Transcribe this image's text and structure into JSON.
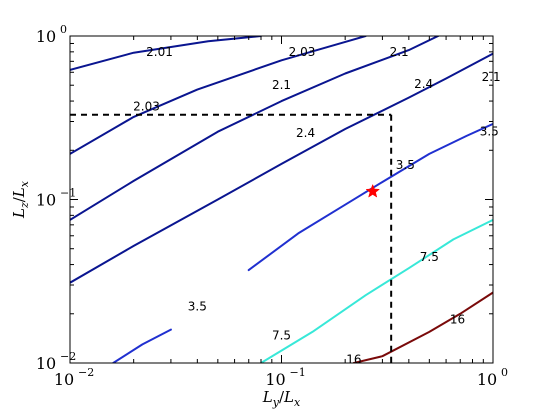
{
  "chart_data": {
    "type": "contour",
    "x_scale": "log",
    "y_scale": "log",
    "xlim": [
      0.01,
      1
    ],
    "ylim": [
      0.01,
      1
    ],
    "grid": false,
    "xlabel": {
      "base": "L",
      "sub": "y",
      "sep": "/",
      "base2": "L",
      "sub2": "x"
    },
    "ylabel": {
      "base": "L",
      "sub": "z",
      "sep": "/",
      "base2": "L",
      "sub2": "x"
    },
    "x_ticks": [
      {
        "value": 0.01,
        "base": "10",
        "exp": "−2"
      },
      {
        "value": 0.1,
        "base": "10",
        "exp": "−1"
      },
      {
        "value": 1,
        "base": "10",
        "exp": "0"
      }
    ],
    "y_ticks": [
      {
        "value": 0.01,
        "base": "10",
        "exp": "−2"
      },
      {
        "value": 0.1,
        "base": "10",
        "exp": "−1"
      },
      {
        "value": 1,
        "base": "10",
        "exp": "0"
      }
    ],
    "contours": [
      {
        "level": "2.01",
        "color": "#0a1590",
        "segments": [
          [
            [
              0.01,
              0.62
            ],
            [
              0.02,
              0.79
            ],
            [
              0.045,
              0.93
            ],
            [
              0.08,
              1.0
            ]
          ]
        ]
      },
      {
        "level": "2.03",
        "color": "#0a1590",
        "segments": [
          [
            [
              0.01,
              0.19
            ],
            [
              0.02,
              0.32
            ],
            [
              0.04,
              0.47
            ],
            [
              0.1,
              0.71
            ],
            [
              0.2,
              0.92
            ],
            [
              0.25,
              1.0
            ]
          ]
        ]
      },
      {
        "level": "2.1",
        "color": "#0a1590",
        "segments": [
          [
            [
              0.01,
              0.075
            ],
            [
              0.02,
              0.13
            ],
            [
              0.05,
              0.26
            ],
            [
              0.1,
              0.4
            ],
            [
              0.2,
              0.59
            ],
            [
              0.4,
              0.82
            ],
            [
              0.55,
              1.0
            ]
          ]
        ]
      },
      {
        "level": "2.4",
        "color": "#0a1590",
        "segments": [
          [
            [
              0.01,
              0.031
            ],
            [
              0.02,
              0.052
            ],
            [
              0.05,
              0.1
            ],
            [
              0.1,
              0.165
            ],
            [
              0.2,
              0.27
            ],
            [
              0.4,
              0.42
            ],
            [
              0.6,
              0.55
            ],
            [
              1.0,
              0.78
            ]
          ]
        ]
      },
      {
        "level": "3.5",
        "color": "#2030d0",
        "segments": [
          [
            [
              0.016,
              0.01
            ],
            [
              0.022,
              0.013
            ],
            [
              0.03,
              0.016
            ]
          ],
          [
            [
              0.07,
              0.037
            ],
            [
              0.12,
              0.062
            ],
            [
              0.2,
              0.093
            ],
            [
              0.3,
              0.128
            ],
            [
              0.5,
              0.19
            ],
            [
              0.75,
              0.245
            ],
            [
              1.0,
              0.29
            ]
          ]
        ]
      },
      {
        "level": "7.5",
        "color": "#38e8d8",
        "segments": [
          [
            [
              0.08,
              0.01
            ],
            [
              0.14,
              0.0155
            ],
            [
              0.25,
              0.026
            ],
            [
              0.4,
              0.038
            ],
            [
              0.65,
              0.057
            ],
            [
              1.0,
              0.075
            ]
          ]
        ]
      },
      {
        "level": "16",
        "color": "#7a0a0a",
        "segments": [
          [
            [
              0.22,
              0.01
            ],
            [
              0.3,
              0.011
            ],
            [
              0.5,
              0.0155
            ],
            [
              0.7,
              0.02
            ],
            [
              1.0,
              0.027
            ]
          ]
        ]
      }
    ],
    "contour_labels": [
      {
        "text": "2.01",
        "x": 0.0265,
        "y": 0.8
      },
      {
        "text": "2.03",
        "x": 0.125,
        "y": 0.8
      },
      {
        "text": "2.1",
        "x": 0.36,
        "y": 0.8
      },
      {
        "text": "2.1",
        "x": 0.98,
        "y": 0.56
      },
      {
        "text": "2.03",
        "x": 0.023,
        "y": 0.37
      },
      {
        "text": "2.1",
        "x": 0.1,
        "y": 0.5
      },
      {
        "text": "2.4",
        "x": 0.47,
        "y": 0.51
      },
      {
        "text": "2.4",
        "x": 0.13,
        "y": 0.255
      },
      {
        "text": "3.5",
        "x": 0.96,
        "y": 0.26
      },
      {
        "text": "3.5",
        "x": 0.385,
        "y": 0.163
      },
      {
        "text": "3.5",
        "x": 0.04,
        "y": 0.0221
      },
      {
        "text": "7.5",
        "x": 0.5,
        "y": 0.0445
      },
      {
        "text": "7.5",
        "x": 0.1,
        "y": 0.0147
      },
      {
        "text": "16",
        "x": 0.68,
        "y": 0.0184
      },
      {
        "text": "16",
        "x": 0.22,
        "y": 0.0105
      }
    ],
    "reference_lines": {
      "x": 0.33,
      "y": 0.33,
      "style": "dashed",
      "color": "#000000"
    },
    "marker": {
      "x": 0.27,
      "y": 0.112,
      "shape": "star",
      "color": "#ff0000"
    }
  }
}
